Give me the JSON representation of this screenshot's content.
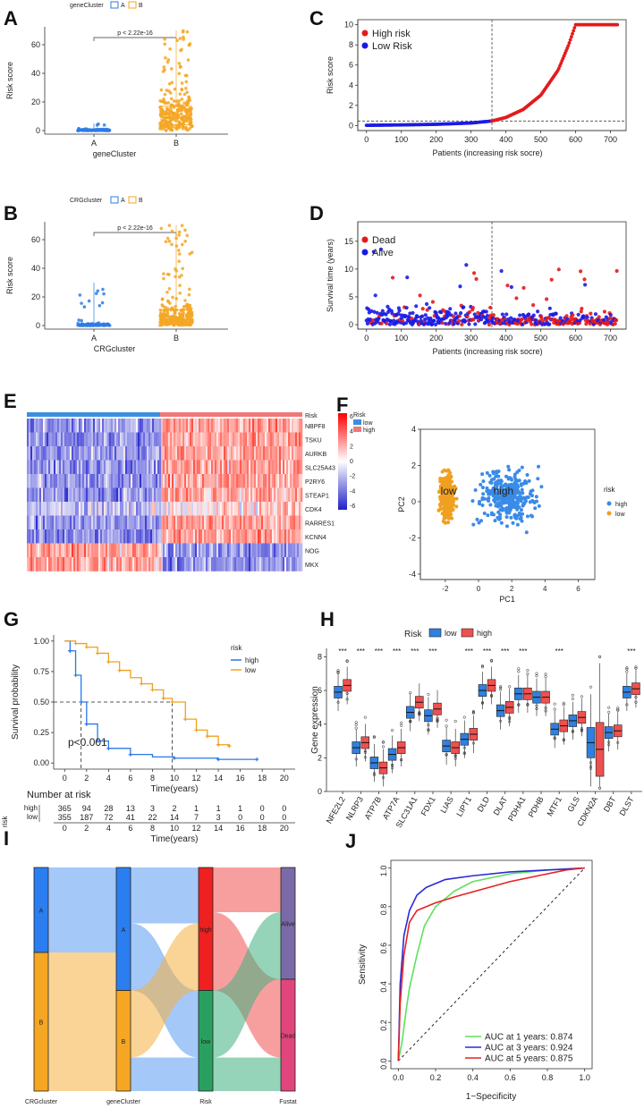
{
  "panel_labels": [
    "A",
    "B",
    "C",
    "D",
    "E",
    "F",
    "G",
    "H",
    "I",
    "J"
  ],
  "colors": {
    "blue": "#2d7be6",
    "orange": "#f5a623",
    "red": "#e31a1c",
    "dblue": "#1a1ae6",
    "green": "#2ca02c",
    "purple": "#7b6aa8",
    "pink": "#e0457b",
    "hm_hi": "#ff0000",
    "hm_lo": "#2020c8"
  },
  "chart_data": [
    {
      "id": "A",
      "type": "box",
      "title": "",
      "legend_title": "geneCluster",
      "legend": [
        "A",
        "B"
      ],
      "categories": [
        "A",
        "B"
      ],
      "xlabel": "geneCluster",
      "ylabel": "Risk score",
      "ylim": [
        0,
        70
      ],
      "yticks": [
        0,
        20,
        40,
        60
      ],
      "annotation": "p < 2.22e-16",
      "boxes": [
        {
          "q1": 0.1,
          "median": 0.3,
          "q3": 0.7,
          "max": 5
        },
        {
          "q1": 4,
          "median": 9,
          "q3": 17,
          "max": 70
        }
      ]
    },
    {
      "id": "B",
      "type": "box",
      "title": "",
      "legend_title": "CRGcluster",
      "legend": [
        "A",
        "B"
      ],
      "categories": [
        "A",
        "B"
      ],
      "xlabel": "CRGcluster",
      "ylabel": "Risk score",
      "ylim": [
        0,
        70
      ],
      "yticks": [
        0,
        20,
        40,
        60
      ],
      "annotation": "p < 2.22e-16",
      "boxes": [
        {
          "q1": 0.1,
          "median": 0.4,
          "q3": 1.0,
          "max": 30
        },
        {
          "q1": 1.5,
          "median": 4,
          "q3": 11,
          "max": 70
        }
      ]
    },
    {
      "id": "C",
      "type": "scatter",
      "xlabel": "Patients (increasing risk socre)",
      "ylabel": "Risk score",
      "xlim": [
        0,
        720
      ],
      "ylim": [
        0,
        10
      ],
      "xticks": [
        0,
        100,
        200,
        300,
        400,
        500,
        600,
        700
      ],
      "yticks": [
        0,
        2,
        4,
        6,
        8,
        10
      ],
      "cutoff_x": 360,
      "cutoff_y": 0.45,
      "legend": [
        "High risk",
        "Low Risk"
      ],
      "curve": [
        [
          0,
          0.02
        ],
        [
          100,
          0.06
        ],
        [
          200,
          0.12
        ],
        [
          300,
          0.25
        ],
        [
          360,
          0.45
        ],
        [
          400,
          0.8
        ],
        [
          450,
          1.6
        ],
        [
          500,
          3.0
        ],
        [
          550,
          5.5
        ],
        [
          580,
          8.0
        ],
        [
          600,
          10
        ],
        [
          720,
          10
        ]
      ]
    },
    {
      "id": "D",
      "type": "scatter",
      "xlabel": "Patients (increasing risk socre)",
      "ylabel": "Survival time (years)",
      "xlim": [
        0,
        720
      ],
      "ylim": [
        0,
        17.5
      ],
      "xticks": [
        0,
        100,
        200,
        300,
        400,
        500,
        600,
        700
      ],
      "yticks": [
        0,
        5,
        10,
        15
      ],
      "cutoff_x": 360,
      "legend": [
        "Dead",
        "Alive"
      ]
    },
    {
      "id": "E",
      "type": "heatmap",
      "genes": [
        "NBPF8",
        "TSKU",
        "AURKB",
        "SLC25A43",
        "P2RY6",
        "STEAP1",
        "CDK4",
        "RARRES1",
        "KCNN4",
        "NOG",
        "MKX"
      ],
      "bar_label": "Risk",
      "legend_title": "Risk",
      "legend": [
        "low",
        "high"
      ],
      "scale": [
        6,
        4,
        2,
        0,
        -2,
        -4,
        -6
      ]
    },
    {
      "id": "F",
      "type": "scatter",
      "xlabel": "PC1",
      "ylabel": "PC2",
      "xlim": [
        -3.5,
        7
      ],
      "ylim": [
        -4.3,
        4
      ],
      "xticks": [
        -2,
        0,
        2,
        4,
        6
      ],
      "yticks": [
        -4,
        -2,
        0,
        2,
        4
      ],
      "legend_title": "risk",
      "legend": [
        "high",
        "low"
      ],
      "labels": [
        "low",
        "high"
      ]
    },
    {
      "id": "G",
      "type": "line",
      "xlabel": "Time(years)",
      "ylabel": "Survival probability",
      "xlim": [
        0,
        20
      ],
      "ylim": [
        0,
        1
      ],
      "xticks": [
        0,
        2,
        4,
        6,
        8,
        10,
        12,
        14,
        16,
        18,
        20
      ],
      "yticks": [
        "0.00",
        "0.25",
        "0.50",
        "0.75",
        "1.00"
      ],
      "legend_title": "risk",
      "legend": [
        "high",
        "low"
      ],
      "annotation": "p<0.001",
      "series": [
        {
          "name": "high",
          "points": [
            [
              0,
              1
            ],
            [
              0.5,
              0.92
            ],
            [
              1,
              0.72
            ],
            [
              1.5,
              0.5
            ],
            [
              2,
              0.32
            ],
            [
              3,
              0.18
            ],
            [
              4,
              0.12
            ],
            [
              6,
              0.07
            ],
            [
              8,
              0.05
            ],
            [
              10,
              0.04
            ],
            [
              14,
              0.03
            ],
            [
              17.5,
              0.03
            ]
          ]
        },
        {
          "name": "low",
          "points": [
            [
              0,
              1
            ],
            [
              1,
              0.98
            ],
            [
              2,
              0.95
            ],
            [
              3,
              0.9
            ],
            [
              4,
              0.83
            ],
            [
              5,
              0.76
            ],
            [
              6,
              0.7
            ],
            [
              7,
              0.65
            ],
            [
              8,
              0.6
            ],
            [
              9,
              0.53
            ],
            [
              9.8,
              0.5
            ],
            [
              11,
              0.36
            ],
            [
              12,
              0.27
            ],
            [
              13,
              0.22
            ],
            [
              14,
              0.15
            ],
            [
              15,
              0.14
            ]
          ]
        }
      ],
      "risk_table": {
        "title": "Number at risk",
        "row_label": "risk",
        "high": [
          "365",
          "94",
          "28",
          "13",
          "3",
          "2",
          "1",
          "1",
          "1",
          "0",
          "0"
        ],
        "low": [
          "355",
          "187",
          "72",
          "41",
          "22",
          "14",
          "7",
          "3",
          "0",
          "0",
          "0"
        ]
      }
    },
    {
      "id": "H",
      "type": "box",
      "legend_title": "Risk",
      "legend": [
        "low",
        "high"
      ],
      "ylabel": "Gene expression",
      "ylim": [
        0,
        8.5
      ],
      "yticks": [
        0,
        2,
        4,
        6,
        8
      ],
      "categories": [
        "NFE2L2",
        "NLRP3",
        "ATP7B",
        "ATP7A",
        "SLC31A1",
        "FDX1",
        "LIAS",
        "LIPT1",
        "DLD",
        "DLAT",
        "PDHA1",
        "PDHB",
        "MTF1",
        "GLS",
        "CDKN2A",
        "DBT",
        "DLST"
      ],
      "significance": [
        "***",
        "***",
        "***",
        "***",
        "***",
        "***",
        "",
        "***",
        "***",
        "***",
        "***",
        "",
        "***",
        "",
        "",
        "",
        "***"
      ],
      "series": [
        {
          "name": "low",
          "medians": [
            5.9,
            2.6,
            1.7,
            2.2,
            4.7,
            4.5,
            2.7,
            3.1,
            6.0,
            4.8,
            5.8,
            5.6,
            3.7,
            4.2,
            2.9,
            3.5,
            5.9
          ]
        },
        {
          "name": "high",
          "medians": [
            6.3,
            2.9,
            1.4,
            2.6,
            5.3,
            4.9,
            2.6,
            3.4,
            6.3,
            5.0,
            5.8,
            5.6,
            3.9,
            4.4,
            2.5,
            3.6,
            6.1
          ]
        }
      ]
    },
    {
      "id": "I",
      "type": "sankey",
      "axes": [
        "CRGcluster",
        "geneCluster",
        "Risk",
        "Fustat"
      ],
      "nodes": {
        "CRGcluster": [
          "A",
          "B"
        ],
        "geneCluster": [
          "A",
          "B"
        ],
        "Risk": [
          "high",
          "low"
        ],
        "Fustat": [
          "Alive",
          "Dead"
        ]
      }
    },
    {
      "id": "J",
      "type": "line",
      "xlabel": "1−Specificity",
      "ylabel": "Sensitivity",
      "xlim": [
        0,
        1
      ],
      "ylim": [
        0,
        1
      ],
      "ticks": [
        "0.0",
        "0.2",
        "0.4",
        "0.6",
        "0.8",
        "1.0"
      ],
      "series": [
        {
          "name": "AUC at 1 years: 0.874",
          "color": "#5ee05e",
          "points": [
            [
              0,
              0
            ],
            [
              0.02,
              0.1
            ],
            [
              0.04,
              0.25
            ],
            [
              0.06,
              0.38
            ],
            [
              0.1,
              0.55
            ],
            [
              0.14,
              0.7
            ],
            [
              0.2,
              0.8
            ],
            [
              0.3,
              0.88
            ],
            [
              0.4,
              0.93
            ],
            [
              0.6,
              0.97
            ],
            [
              0.8,
              0.99
            ],
            [
              1,
              1
            ]
          ]
        },
        {
          "name": "AUC at 3 years: 0.924",
          "color": "#2a2ad8",
          "points": [
            [
              0,
              0
            ],
            [
              0.01,
              0.4
            ],
            [
              0.03,
              0.65
            ],
            [
              0.06,
              0.78
            ],
            [
              0.1,
              0.86
            ],
            [
              0.15,
              0.9
            ],
            [
              0.25,
              0.94
            ],
            [
              0.4,
              0.96
            ],
            [
              0.6,
              0.98
            ],
            [
              0.8,
              0.99
            ],
            [
              1,
              1
            ]
          ]
        },
        {
          "name": "AUC at 5 years: 0.875",
          "color": "#e82020",
          "points": [
            [
              0,
              0
            ],
            [
              0.01,
              0.3
            ],
            [
              0.03,
              0.55
            ],
            [
              0.06,
              0.72
            ],
            [
              0.1,
              0.78
            ],
            [
              0.2,
              0.82
            ],
            [
              0.3,
              0.85
            ],
            [
              0.45,
              0.89
            ],
            [
              0.6,
              0.93
            ],
            [
              0.75,
              0.96
            ],
            [
              0.9,
              0.99
            ],
            [
              1,
              1
            ]
          ]
        }
      ]
    }
  ]
}
